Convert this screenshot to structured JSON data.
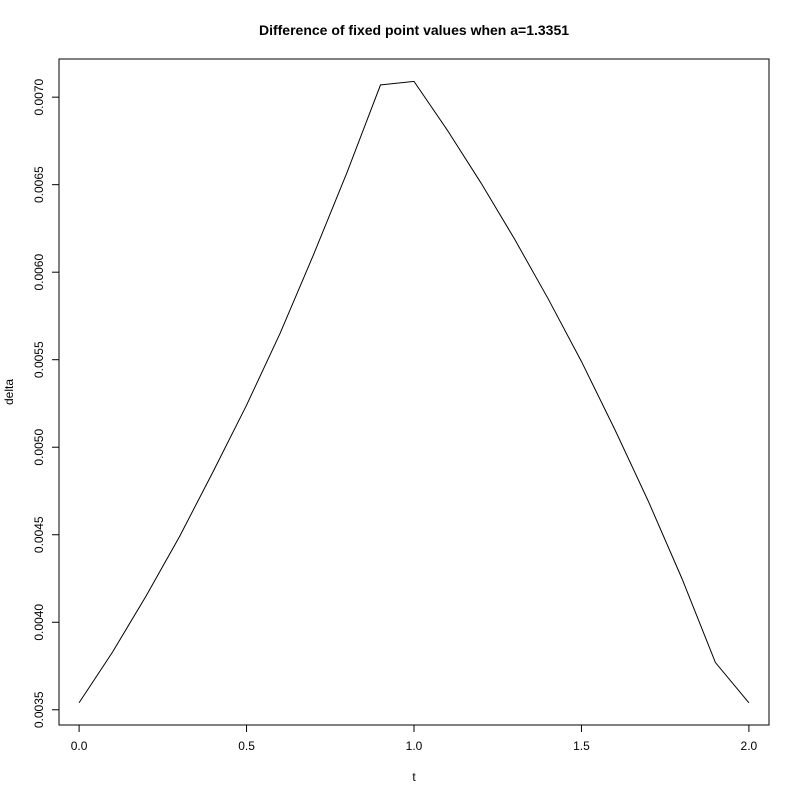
{
  "chart_data": {
    "type": "line",
    "title": "Difference of fixed point values when a=1.3351",
    "xlabel": "t",
    "ylabel": "delta",
    "xlim": [
      -0.06,
      2.06
    ],
    "ylim": [
      0.003413,
      0.007218
    ],
    "x_ticks": [
      0.0,
      0.5,
      1.0,
      1.5,
      2.0
    ],
    "x_tick_labels": [
      "0.0",
      "0.5",
      "1.0",
      "1.5",
      "2.0"
    ],
    "y_ticks": [
      0.0035,
      0.004,
      0.0045,
      0.005,
      0.0055,
      0.006,
      0.0065,
      0.007
    ],
    "y_tick_labels": [
      "0.0035",
      "0.0040",
      "0.0045",
      "0.0050",
      "0.0055",
      "0.0060",
      "0.0065",
      "0.0070"
    ],
    "grid": false,
    "legend": "none",
    "series": [
      {
        "color": "#000000",
        "x": [
          0.0,
          0.1,
          0.2,
          0.3,
          0.4,
          0.5,
          0.6,
          0.7,
          0.8,
          0.9,
          1.0,
          1.1,
          1.2,
          1.3,
          1.4,
          1.5,
          1.6,
          1.7,
          1.8,
          1.9,
          2.0
        ],
        "y": [
          0.00354,
          0.00383,
          0.00415,
          0.00449,
          0.00486,
          0.00524,
          0.00565,
          0.0061,
          0.00657,
          0.00707,
          0.00709,
          0.00681,
          0.00651,
          0.00619,
          0.00585,
          0.00549,
          0.0051,
          0.00469,
          0.00425,
          0.00377,
          0.00354
        ]
      }
    ]
  }
}
